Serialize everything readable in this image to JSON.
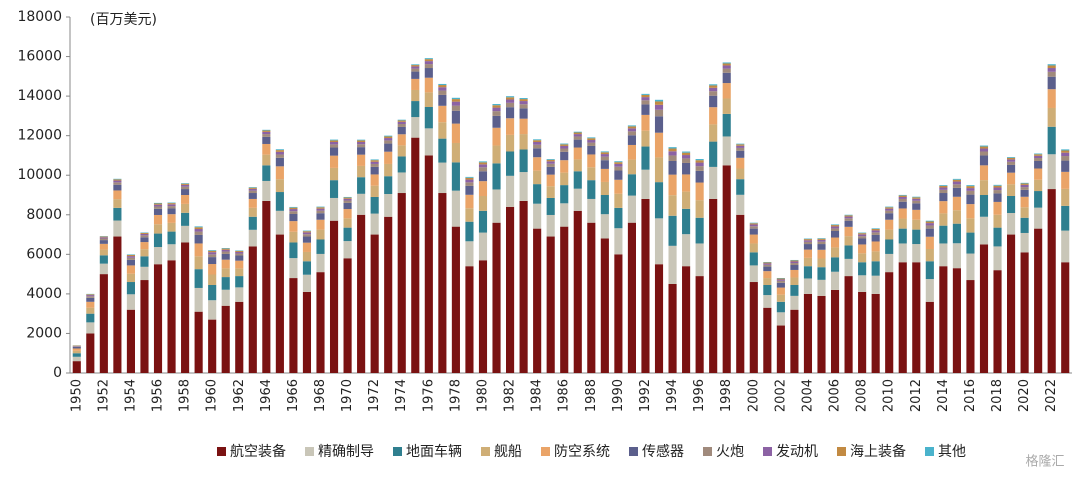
{
  "chart_data": {
    "type": "stacked_bar",
    "unit_label": "(百万美元)",
    "watermark": "格隆汇",
    "categories": [
      "1950",
      null,
      "1952",
      null,
      "1954",
      null,
      "1956",
      null,
      "1958",
      null,
      "1960",
      null,
      "1962",
      null,
      "1964",
      null,
      "1966",
      null,
      "1968",
      null,
      "1970",
      null,
      "1972",
      null,
      "1974",
      null,
      "1976",
      null,
      "1978",
      null,
      "1980",
      null,
      "1982",
      null,
      "1984",
      null,
      "1986",
      null,
      "1988",
      null,
      "1990",
      null,
      "1992",
      null,
      "1994",
      null,
      "1996",
      null,
      "1998",
      null,
      "2000",
      null,
      "2002",
      null,
      "2004",
      null,
      "2006",
      null,
      "2008",
      null,
      "2010",
      null,
      "2012",
      null,
      "2014",
      null,
      "2016",
      null,
      "2018",
      null,
      "2020",
      null,
      "2022",
      null
    ],
    "ylim": [
      0,
      18000
    ],
    "yticks": [
      0,
      2000,
      4000,
      6000,
      8000,
      10000,
      12000,
      14000,
      16000,
      18000
    ],
    "series": [
      {
        "name": "航空装备",
        "color": "#7a1212",
        "values": [
          600,
          2000,
          5000,
          6900,
          3200,
          4700,
          5500,
          5700,
          6600,
          3100,
          2700,
          3400,
          3600,
          6400,
          8700,
          7000,
          4800,
          4100,
          5100,
          7700,
          5800,
          8000,
          7000,
          7900,
          9100,
          11900,
          11000,
          9100,
          7400,
          5400,
          5700,
          7600,
          8400,
          8700,
          7300,
          6900,
          7400,
          8200,
          7600,
          6800,
          6000,
          7600,
          8800,
          5500,
          4500,
          5400,
          4900,
          8800,
          10500,
          8000,
          4600,
          3300,
          2400,
          3200,
          4000,
          3900,
          4200,
          4900,
          4100,
          4000,
          5100,
          5600,
          5600,
          3600,
          5400,
          5300,
          4700,
          6500,
          5200,
          7000,
          6100,
          7300,
          9300,
          5600
        ]
      },
      {
        "name": "精确制导",
        "color": "#c9c6b8",
        "values": [
          220,
          560,
          530,
          810,
          780,
          670,
          870,
          810,
          840,
          1200,
          980,
          810,
          730,
          840,
          1010,
          1200,
          1010,
          870,
          920,
          1150,
          870,
          1060,
          1060,
          1150,
          1040,
          1040,
          1370,
          1540,
          1820,
          1260,
          1400,
          1680,
          1570,
          1460,
          1260,
          1090,
          1180,
          1120,
          1200,
          1230,
          1320,
          1370,
          1480,
          2320,
          1930,
          1620,
          1650,
          1620,
          1460,
          1010,
          840,
          640,
          670,
          700,
          780,
          810,
          920,
          870,
          840,
          920,
          920,
          950,
          920,
          1150,
          1150,
          1260,
          1340,
          1400,
          1200,
          1090,
          980,
          1060,
          1760,
          1600
        ]
      },
      {
        "name": "地面车辆",
        "color": "#2f7f8f",
        "values": [
          180,
          440,
          420,
          640,
          620,
          530,
          680,
          640,
          660,
          950,
          770,
          640,
          570,
          660,
          790,
          950,
          790,
          680,
          730,
          900,
          680,
          840,
          840,
          900,
          810,
          810,
          1080,
          1210,
          1430,
          990,
          1100,
          1320,
          1230,
          1140,
          990,
          860,
          920,
          880,
          950,
          970,
          1030,
          1080,
          1170,
          1830,
          1520,
          1280,
          1300,
          1280,
          1140,
          790,
          660,
          510,
          530,
          550,
          620,
          640,
          730,
          680,
          660,
          730,
          730,
          750,
          730,
          900,
          900,
          990,
          1060,
          1100,
          950,
          860,
          770,
          840,
          1390,
          1250
        ]
      },
      {
        "name": "舰船",
        "color": "#cfae76",
        "values": [
          120,
          300,
          290,
          440,
          420,
          360,
          470,
          440,
          450,
          650,
          530,
          440,
          390,
          450,
          540,
          650,
          540,
          470,
          500,
          620,
          470,
          570,
          570,
          620,
          560,
          560,
          740,
          830,
          980,
          680,
          750,
          900,
          840,
          780,
          680,
          590,
          630,
          600,
          650,
          660,
          710,
          740,
          800,
          1250,
          1040,
          870,
          890,
          870,
          780,
          540,
          450,
          350,
          360,
          380,
          420,
          440,
          500,
          470,
          450,
          500,
          500,
          510,
          500,
          620,
          620,
          680,
          720,
          750,
          650,
          590,
          530,
          570,
          950,
          860
        ]
      },
      {
        "name": "防空系统",
        "color": "#eaa468",
        "values": [
          120,
          300,
          290,
          440,
          420,
          360,
          470,
          440,
          450,
          650,
          530,
          440,
          390,
          450,
          540,
          650,
          540,
          470,
          500,
          620,
          470,
          570,
          570,
          620,
          560,
          560,
          740,
          830,
          980,
          680,
          750,
          900,
          840,
          780,
          680,
          590,
          630,
          600,
          650,
          660,
          710,
          740,
          800,
          1250,
          1040,
          870,
          890,
          870,
          780,
          540,
          450,
          350,
          360,
          380,
          420,
          440,
          500,
          470,
          450,
          500,
          500,
          510,
          500,
          620,
          620,
          680,
          720,
          750,
          650,
          590,
          530,
          570,
          950,
          860
        ]
      },
      {
        "name": "传感器",
        "color": "#5b5f8c",
        "values": [
          80,
          200,
          190,
          290,
          280,
          240,
          310,
          290,
          300,
          430,
          350,
          290,
          260,
          300,
          360,
          430,
          360,
          310,
          330,
          410,
          310,
          380,
          380,
          410,
          370,
          370,
          490,
          550,
          650,
          450,
          500,
          600,
          560,
          520,
          450,
          390,
          420,
          400,
          430,
          440,
          470,
          490,
          530,
          830,
          690,
          580,
          590,
          580,
          520,
          360,
          300,
          230,
          240,
          250,
          280,
          290,
          330,
          310,
          300,
          330,
          330,
          340,
          330,
          410,
          410,
          450,
          480,
          500,
          430,
          390,
          350,
          380,
          630,
          570
        ]
      },
      {
        "name": "火炮",
        "color": "#a08a7c",
        "values": [
          30,
          80,
          80,
          120,
          110,
          100,
          120,
          120,
          120,
          170,
          140,
          120,
          100,
          120,
          140,
          170,
          140,
          120,
          130,
          160,
          120,
          150,
          150,
          160,
          150,
          150,
          200,
          220,
          260,
          180,
          200,
          240,
          220,
          210,
          180,
          160,
          170,
          160,
          170,
          180,
          190,
          200,
          210,
          330,
          280,
          230,
          240,
          230,
          210,
          140,
          120,
          90,
          100,
          100,
          110,
          120,
          130,
          120,
          120,
          130,
          130,
          140,
          130,
          160,
          160,
          180,
          190,
          200,
          170,
          160,
          140,
          150,
          250,
          230
        ]
      },
      {
        "name": "发动机",
        "color": "#8c62a4",
        "values": [
          20,
          60,
          60,
          90,
          80,
          70,
          90,
          90,
          90,
          130,
          110,
          90,
          80,
          90,
          110,
          130,
          110,
          90,
          100,
          120,
          90,
          110,
          110,
          120,
          110,
          110,
          150,
          170,
          200,
          140,
          150,
          180,
          170,
          160,
          140,
          120,
          130,
          120,
          130,
          130,
          140,
          150,
          160,
          250,
          210,
          170,
          180,
          170,
          160,
          110,
          90,
          70,
          70,
          80,
          80,
          90,
          100,
          90,
          90,
          100,
          100,
          100,
          100,
          120,
          120,
          140,
          140,
          150,
          130,
          120,
          110,
          110,
          190,
          170
        ]
      },
      {
        "name": "海上装备",
        "color": "#c28a42",
        "values": [
          20,
          40,
          40,
          60,
          60,
          50,
          60,
          60,
          60,
          90,
          70,
          60,
          50,
          60,
          70,
          90,
          70,
          60,
          70,
          80,
          60,
          80,
          80,
          80,
          70,
          70,
          100,
          110,
          130,
          90,
          100,
          120,
          110,
          100,
          90,
          80,
          80,
          80,
          90,
          90,
          90,
          100,
          110,
          170,
          140,
          120,
          120,
          120,
          100,
          70,
          60,
          50,
          50,
          50,
          60,
          60,
          70,
          60,
          60,
          70,
          70,
          70,
          70,
          80,
          80,
          90,
          100,
          100,
          90,
          80,
          70,
          80,
          130,
          110
        ]
      },
      {
        "name": "其他",
        "color": "#4ab3cc",
        "values": [
          8,
          20,
          19,
          29,
          28,
          24,
          31,
          29,
          30,
          43,
          35,
          29,
          26,
          30,
          36,
          43,
          36,
          31,
          33,
          41,
          31,
          38,
          38,
          41,
          37,
          37,
          49,
          55,
          65,
          45,
          50,
          60,
          56,
          52,
          45,
          39,
          42,
          40,
          43,
          44,
          47,
          49,
          53,
          83,
          69,
          58,
          59,
          58,
          52,
          36,
          30,
          23,
          24,
          25,
          28,
          29,
          33,
          31,
          30,
          33,
          33,
          34,
          33,
          41,
          41,
          45,
          48,
          50,
          43,
          39,
          35,
          38,
          63,
          57
        ]
      }
    ]
  }
}
